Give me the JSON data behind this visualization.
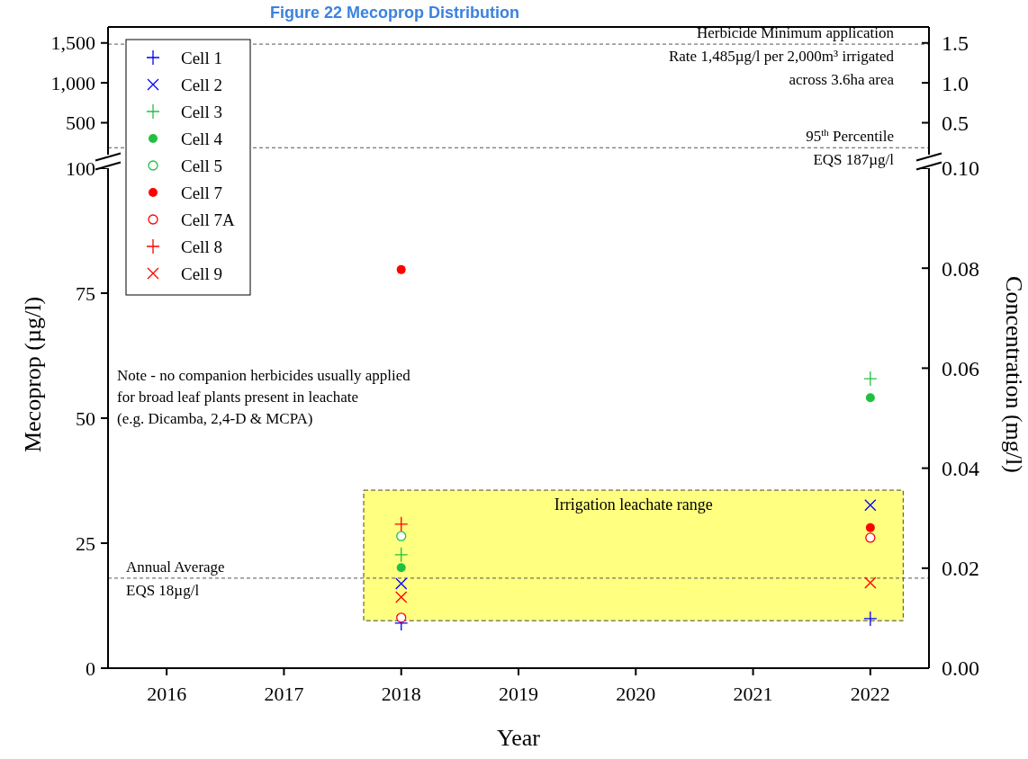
{
  "chart_data": [
    {
      "type": "scatter",
      "title": "Figure 22 Mecoprop Distribution",
      "xlim": [
        2015.5,
        2022.5
      ],
      "ylim": [
        100,
        1700
      ],
      "yticks": [
        500,
        {
          "value": 1000,
          "label": "1,000"
        },
        {
          "value": 1500,
          "label": "1,500"
        }
      ],
      "y2lim": [
        0.1,
        1.7
      ],
      "y2ticks": [
        0.5,
        {
          "value": 1.0,
          "label": "1.0"
        },
        1.5
      ],
      "tick_labels": "y",
      "ref_lines": [
        {
          "axis": "y",
          "value": 1485,
          "label": "Herbicide Minimum application\nRate 1,485µg/l per 2,000m³ irrigated\nacross 3.6ha area",
          "color": "#555555",
          "line_style": "dashed"
        },
        {
          "axis": "y",
          "value": 187,
          "label": "95$^{th}$ Percentile\nEQS 187µg/l",
          "color": "#555555",
          "line_style": "dashed"
        }
      ]
    },
    {
      "type": "scatter",
      "xlabel": "Year",
      "ylabel": "Mecoprop (µg/l)",
      "y2label": "Concentration (mg/l)",
      "x": [
        2018,
        2022
      ],
      "xlim": [
        2015.5,
        2022.5
      ],
      "xticks": [
        2016,
        2017,
        2018,
        2019,
        2020,
        2021,
        2022
      ],
      "ylim": [
        0,
        100
      ],
      "yticks": [
        0,
        25,
        50,
        75,
        100
      ],
      "y2lim": [
        0,
        0.1
      ],
      "y2ticks": [
        {
          "value": 0,
          "label": "0.00"
        },
        {
          "value": 0.02,
          "label": "0.02"
        },
        {
          "value": 0.04,
          "label": "0.04"
        },
        {
          "value": 0.06,
          "label": "0.06"
        },
        {
          "value": 0.08,
          "label": "0.08"
        },
        {
          "value": 0.1,
          "label": "0.10"
        }
      ],
      "legend": "top left",
      "series": [
        {
          "name": "Cell 1",
          "color": "#0000ff",
          "marker": "plus",
          "values": [
            9.0,
            9.9
          ]
        },
        {
          "name": "Cell 2",
          "color": "#0000ff",
          "marker": "cross",
          "values": [
            16.9,
            32.6
          ]
        },
        {
          "name": "Cell 3",
          "color": "#22c040",
          "marker": "plus",
          "values": [
            22.7,
            57.9
          ]
        },
        {
          "name": "Cell 4",
          "color": "#22c040",
          "marker": "circle",
          "values": [
            20.1,
            54.1
          ]
        },
        {
          "name": "Cell 5",
          "color": "#22c040",
          "marker": "circle-open",
          "values": [
            26.4,
            null
          ]
        },
        {
          "name": "Cell 7",
          "color": "#ff0000",
          "marker": "circle",
          "values": [
            79.7,
            28.1
          ]
        },
        {
          "name": "Cell 7A",
          "color": "#ff0000",
          "marker": "circle-open",
          "values": [
            10.1,
            26.1
          ]
        },
        {
          "name": "Cell 8",
          "color": "#ff0000",
          "marker": "plus",
          "values": [
            28.8,
            null
          ]
        },
        {
          "name": "Cell 9",
          "color": "#ff0000",
          "marker": "cross",
          "values": [
            14.2,
            17.1
          ]
        }
      ],
      "ref_lines": [
        {
          "axis": "y",
          "value": 18,
          "label": "Annual Average\nEQS 18µg/l",
          "color": "#555555",
          "line_style": "dashed"
        }
      ],
      "bands": [
        {
          "axis": "y",
          "from": 9.5,
          "to": 35.6,
          "label": "Irrigation leachate range",
          "color": "#ffff80"
        }
      ],
      "annotations": [
        "Note - no companion herbicides usually applied\nfor broad leaf plants present in leachate\n(e.g. Dicamba, 2,4-D & MCPA)"
      ]
    }
  ]
}
